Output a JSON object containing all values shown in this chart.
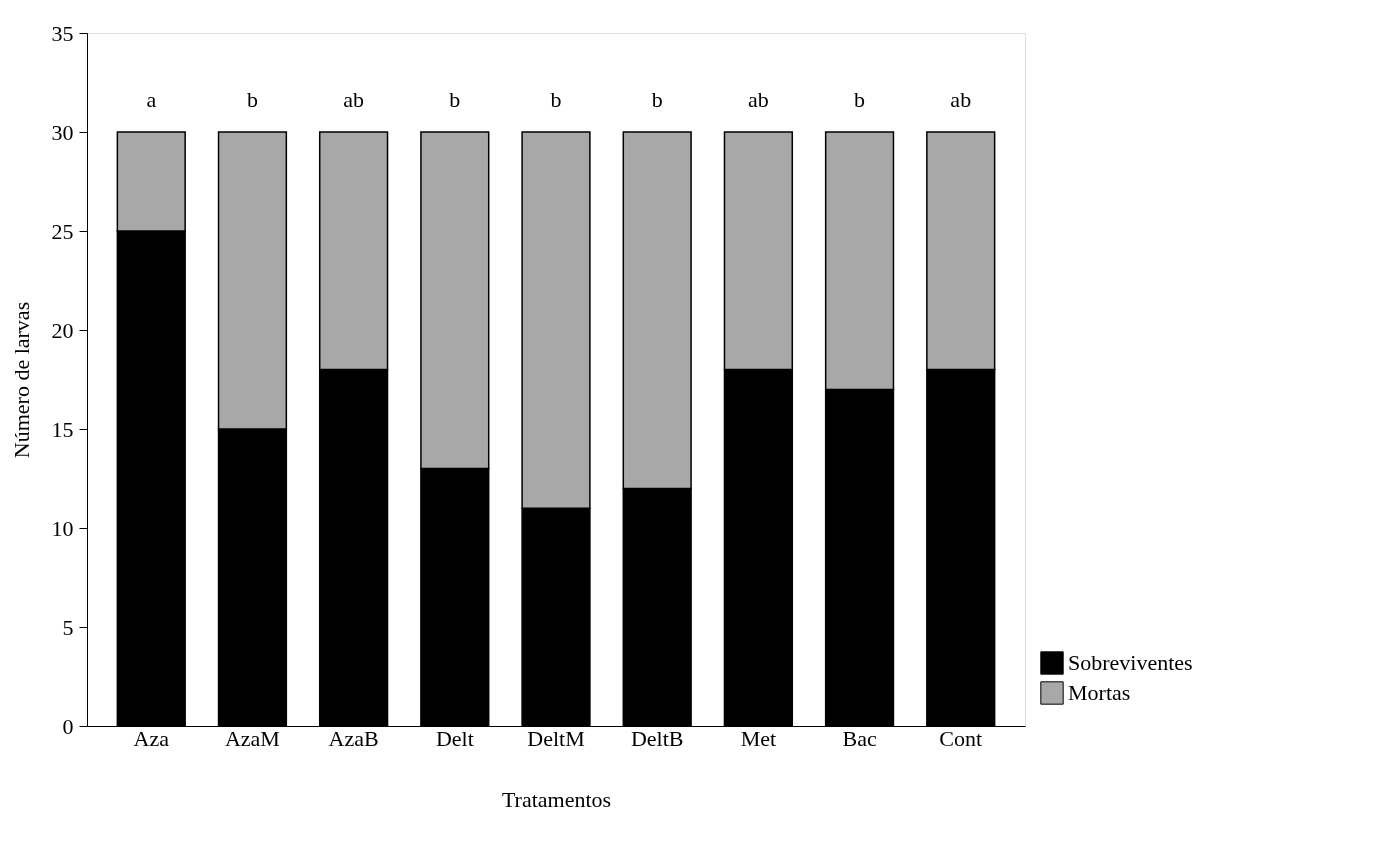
{
  "chart_data": {
    "type": "bar",
    "stacked": true,
    "xlabel": "Tratamentos",
    "ylabel": "Número de larvas",
    "categories": [
      "Aza",
      "AzaM",
      "AzaB",
      "Delt",
      "DeltM",
      "DeltB",
      "Met",
      "Bac",
      "Cont"
    ],
    "series": [
      {
        "name": "Sobreviventes",
        "color": "#000000",
        "values": [
          25,
          15,
          18,
          13,
          11,
          12,
          18,
          17,
          18
        ]
      },
      {
        "name": "Mortas",
        "color": "#a8a8a8",
        "values": [
          5,
          15,
          12,
          17,
          19,
          18,
          12,
          13,
          12
        ]
      }
    ],
    "ylim": [
      0,
      35
    ],
    "yticks": [
      0,
      5,
      10,
      15,
      20,
      25,
      30,
      35
    ],
    "grid": false,
    "legend": "bottom right",
    "annotations": [
      {
        "text": "a",
        "x": "Aza",
        "y": 30
      },
      {
        "text": "b",
        "x": "AzaM",
        "y": 30
      },
      {
        "text": "ab",
        "x": "AzaB",
        "y": 30
      },
      {
        "text": "b",
        "x": "Delt",
        "y": 30
      },
      {
        "text": "b",
        "x": "DeltM",
        "y": 30
      },
      {
        "text": "b",
        "x": "DeltB",
        "y": 30
      },
      {
        "text": "ab",
        "x": "Met",
        "y": 30
      },
      {
        "text": "b",
        "x": "Bac",
        "y": 30
      },
      {
        "text": "ab",
        "x": "Cont",
        "y": 30
      }
    ]
  }
}
